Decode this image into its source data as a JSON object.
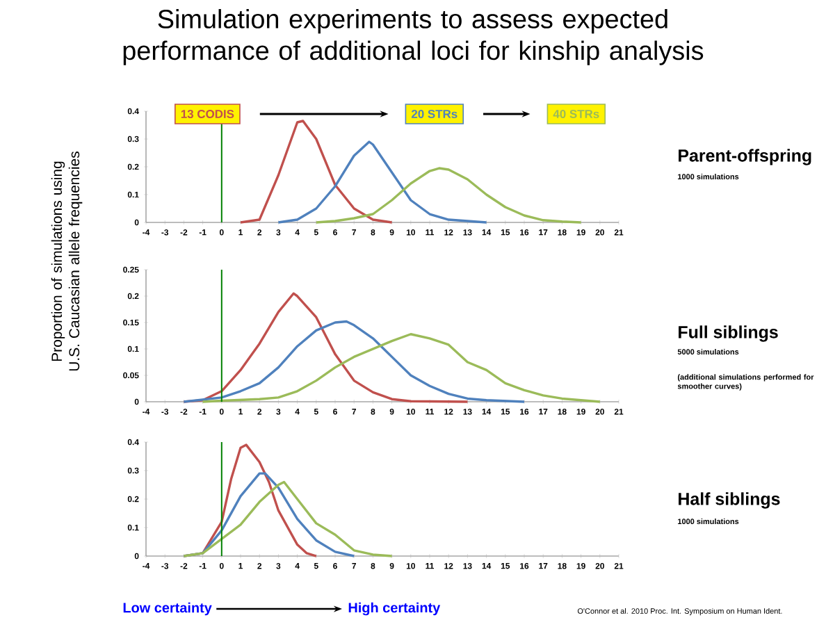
{
  "chart_data": [
    {
      "type": "line",
      "title": "Simulation experiments to assess expected performance of additional loci for kinship analysis",
      "xlim": [
        -4,
        21
      ],
      "ylim": [
        0,
        0.4
      ],
      "xticks": [
        -4,
        -3,
        -2,
        -1,
        0,
        1,
        2,
        3,
        4,
        5,
        6,
        7,
        8,
        9,
        10,
        11,
        12,
        13,
        14,
        15,
        16,
        17,
        18,
        19,
        20,
        21
      ],
      "yticks": [
        0,
        0.1,
        0.2,
        0.3,
        0.4
      ],
      "legend": "top",
      "series": [
        {
          "name": "13 CODIS",
          "color": "#c0504d",
          "x": [
            1,
            2,
            3,
            4,
            4.3,
            5,
            6,
            7,
            8,
            9
          ],
          "values": [
            0,
            0.01,
            0.17,
            0.36,
            0.365,
            0.3,
            0.135,
            0.05,
            0.01,
            0
          ]
        },
        {
          "name": "20 STRs",
          "color": "#4f81bd",
          "x": [
            3,
            4,
            5,
            6,
            7,
            7.8,
            8,
            9,
            10,
            11,
            12,
            13,
            14
          ],
          "values": [
            0,
            0.01,
            0.05,
            0.13,
            0.24,
            0.29,
            0.28,
            0.18,
            0.08,
            0.03,
            0.01,
            0.005,
            0
          ]
        },
        {
          "name": "40 STRs",
          "color": "#9bbb59",
          "x": [
            5,
            6,
            7,
            8,
            9,
            10,
            11,
            11.5,
            12,
            13,
            14,
            15,
            16,
            17,
            18,
            19
          ],
          "values": [
            0,
            0.005,
            0.015,
            0.03,
            0.08,
            0.14,
            0.185,
            0.195,
            0.19,
            0.155,
            0.1,
            0.055,
            0.025,
            0.008,
            0.003,
            0
          ]
        }
      ],
      "ref_lines": [
        {
          "axis": "x",
          "value": 0,
          "color": "#008000"
        }
      ],
      "annotations": [
        "Parent-offspring",
        "1000 simulations"
      ]
    },
    {
      "type": "line",
      "ylabel": "Proportion of simulations using U.S. Caucasian allele frequencies",
      "xlim": [
        -4,
        21
      ],
      "ylim": [
        0,
        0.25
      ],
      "xticks": [
        -4,
        -3,
        -2,
        -1,
        0,
        1,
        2,
        3,
        4,
        5,
        6,
        7,
        8,
        9,
        10,
        11,
        12,
        13,
        14,
        15,
        16,
        17,
        18,
        19,
        20,
        21
      ],
      "yticks": [
        0,
        0.05,
        0.1,
        0.15,
        0.2,
        0.25
      ],
      "series": [
        {
          "color": "#c0504d",
          "x": [
            -2,
            -1,
            0,
            1,
            2,
            3,
            3.8,
            4,
            5,
            6,
            7,
            8,
            9,
            10,
            13
          ],
          "values": [
            0,
            0.003,
            0.02,
            0.06,
            0.11,
            0.17,
            0.205,
            0.2,
            0.16,
            0.09,
            0.04,
            0.018,
            0.005,
            0.001,
            0
          ]
        },
        {
          "color": "#4f81bd",
          "x": [
            -2,
            0,
            1,
            2,
            3,
            4,
            5,
            6,
            6.6,
            7,
            8,
            9,
            10,
            11,
            12,
            13,
            14,
            16
          ],
          "values": [
            0,
            0.008,
            0.02,
            0.035,
            0.065,
            0.105,
            0.135,
            0.15,
            0.152,
            0.145,
            0.12,
            0.085,
            0.05,
            0.03,
            0.015,
            0.006,
            0.003,
            0
          ]
        },
        {
          "color": "#9bbb59",
          "x": [
            -1,
            0,
            2,
            3,
            4,
            5,
            6,
            7,
            8,
            9,
            10,
            11,
            12,
            13,
            14,
            15,
            16,
            17,
            18,
            19,
            20
          ],
          "values": [
            0,
            0.002,
            0.005,
            0.008,
            0.02,
            0.04,
            0.065,
            0.085,
            0.1,
            0.115,
            0.128,
            0.12,
            0.108,
            0.075,
            0.06,
            0.035,
            0.022,
            0.012,
            0.006,
            0.003,
            0
          ]
        }
      ],
      "ref_lines": [
        {
          "axis": "x",
          "value": 0,
          "color": "#008000"
        }
      ],
      "annotations": [
        "Full siblings",
        "5000 simulations",
        "(additional simulations performed for smoother curves)"
      ]
    },
    {
      "type": "line",
      "xlim": [
        -4,
        21
      ],
      "ylim": [
        0,
        0.4
      ],
      "xticks": [
        -4,
        -3,
        -2,
        -1,
        0,
        1,
        2,
        3,
        4,
        5,
        6,
        7,
        8,
        9,
        10,
        11,
        12,
        13,
        14,
        15,
        16,
        17,
        18,
        19,
        20,
        21
      ],
      "yticks": [
        0,
        0.1,
        0.2,
        0.3,
        0.4
      ],
      "series": [
        {
          "color": "#c0504d",
          "x": [
            -2,
            -1,
            0,
            0.5,
            1,
            1.3,
            2,
            2.5,
            3,
            4,
            4.5,
            5
          ],
          "values": [
            0,
            0.01,
            0.12,
            0.27,
            0.38,
            0.39,
            0.33,
            0.26,
            0.16,
            0.04,
            0.01,
            0
          ]
        },
        {
          "color": "#4f81bd",
          "x": [
            -2,
            -1,
            0,
            1,
            2,
            2.3,
            3,
            4,
            5,
            6,
            7
          ],
          "values": [
            0,
            0.01,
            0.09,
            0.21,
            0.29,
            0.29,
            0.24,
            0.13,
            0.055,
            0.015,
            0
          ]
        },
        {
          "color": "#9bbb59",
          "x": [
            -2,
            -1,
            0,
            1,
            2,
            3,
            3.3,
            4,
            5,
            6,
            7,
            8,
            9
          ],
          "values": [
            0,
            0.01,
            0.06,
            0.11,
            0.19,
            0.25,
            0.26,
            0.2,
            0.115,
            0.075,
            0.02,
            0.005,
            0
          ]
        }
      ],
      "ref_lines": [
        {
          "axis": "x",
          "value": 0,
          "color": "#008000"
        }
      ],
      "annotations": [
        "Half siblings",
        "1000 simulations",
        "Low certainty",
        "High certainty",
        "O'Connor et al. 2010 Proc. Int. Symposium on Human Ident."
      ]
    }
  ]
}
